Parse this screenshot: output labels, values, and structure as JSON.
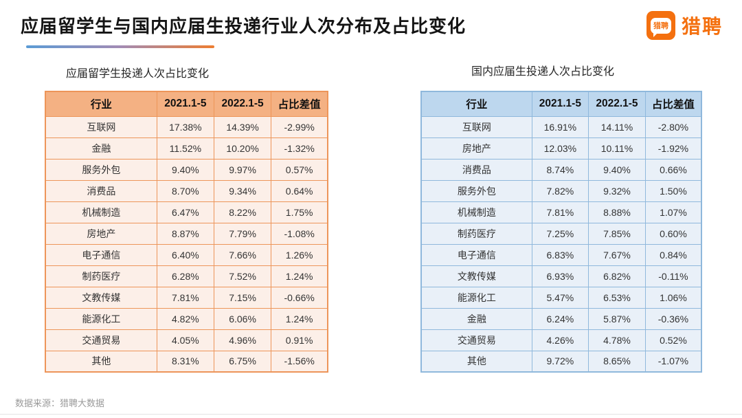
{
  "header": {
    "title": "应届留学生与国内应届生投递行业人次分布及占比变化",
    "underline_gradient": [
      "#5B9BD5",
      "#ED7D31"
    ]
  },
  "logo": {
    "bubble_text": "猎聘",
    "wordmark": "猎聘",
    "brand_color": "#F4700F"
  },
  "footer": {
    "source_text": "数据来源：猎聘大数据"
  },
  "colors": {
    "left_table_header_bg": "#F4B183",
    "left_table_border": "#ED9559",
    "left_table_row_bg": "#FCEFE8",
    "right_table_header_bg": "#BDD7EE",
    "right_table_border": "#8FB8DC",
    "right_table_row_bg": "#E9F0F8"
  },
  "chart_data": [
    {
      "type": "table",
      "title": "应届留学生投递人次占比变化",
      "accent_color": "#ED7D31",
      "columns": [
        "行业",
        "2021.1-5",
        "2022.1-5",
        "占比差值"
      ],
      "rows": [
        [
          "互联网",
          "17.38%",
          "14.39%",
          "-2.99%"
        ],
        [
          "金融",
          "11.52%",
          "10.20%",
          "-1.32%"
        ],
        [
          "服务外包",
          "9.40%",
          "9.97%",
          "0.57%"
        ],
        [
          "消费品",
          "8.70%",
          "9.34%",
          "0.64%"
        ],
        [
          "机械制造",
          "6.47%",
          "8.22%",
          "1.75%"
        ],
        [
          "房地产",
          "8.87%",
          "7.79%",
          "-1.08%"
        ],
        [
          "电子通信",
          "6.40%",
          "7.66%",
          "1.26%"
        ],
        [
          "制药医疗",
          "6.28%",
          "7.52%",
          "1.24%"
        ],
        [
          "文教传媒",
          "7.81%",
          "7.15%",
          "-0.66%"
        ],
        [
          "能源化工",
          "4.82%",
          "6.06%",
          "1.24%"
        ],
        [
          "交通贸易",
          "4.05%",
          "4.96%",
          "0.91%"
        ],
        [
          "其他",
          "8.31%",
          "6.75%",
          "-1.56%"
        ]
      ]
    },
    {
      "type": "table",
      "title": "国内应届生投递人次占比变化",
      "accent_color": "#5B9BD5",
      "columns": [
        "行业",
        "2021.1-5",
        "2022.1-5",
        "占比差值"
      ],
      "rows": [
        [
          "互联网",
          "16.91%",
          "14.11%",
          "-2.80%"
        ],
        [
          "房地产",
          "12.03%",
          "10.11%",
          "-1.92%"
        ],
        [
          "消费品",
          "8.74%",
          "9.40%",
          "0.66%"
        ],
        [
          "服务外包",
          "7.82%",
          "9.32%",
          "1.50%"
        ],
        [
          "机械制造",
          "7.81%",
          "8.88%",
          "1.07%"
        ],
        [
          "制药医疗",
          "7.25%",
          "7.85%",
          "0.60%"
        ],
        [
          "电子通信",
          "6.83%",
          "7.67%",
          "0.84%"
        ],
        [
          "文教传媒",
          "6.93%",
          "6.82%",
          "-0.11%"
        ],
        [
          "能源化工",
          "5.47%",
          "6.53%",
          "1.06%"
        ],
        [
          "金融",
          "6.24%",
          "5.87%",
          "-0.36%"
        ],
        [
          "交通贸易",
          "4.26%",
          "4.78%",
          "0.52%"
        ],
        [
          "其他",
          "9.72%",
          "8.65%",
          "-1.07%"
        ]
      ]
    }
  ]
}
